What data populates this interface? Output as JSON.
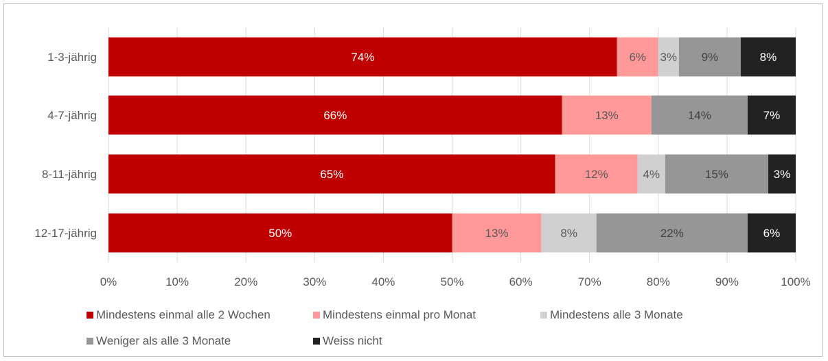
{
  "chart_data": {
    "type": "bar",
    "orientation": "horizontal",
    "stacked": true,
    "categories": [
      "1-3-jährig",
      "4-7-jährig",
      "8-11-jährig",
      "12-17-jährig"
    ],
    "series": [
      {
        "name": "Mindestens einmal alle 2 Wochen",
        "color": "#c00000",
        "label_color": "#ffffff",
        "values": [
          74,
          66,
          65,
          50
        ],
        "labels": [
          "74%",
          "66%",
          "65%",
          "50%"
        ]
      },
      {
        "name": "Mindestens einmal pro Monat",
        "color": "#ff9999",
        "label_color": "#595959",
        "values": [
          6,
          13,
          12,
          13
        ],
        "labels": [
          "6%",
          "13%",
          "12%",
          "13%"
        ]
      },
      {
        "name": "Mindestens alle 3 Monate",
        "color": "#d0d0d0",
        "label_color": "#595959",
        "values": [
          3,
          0,
          4,
          8
        ],
        "labels": [
          "3%",
          "",
          "4%",
          "8%"
        ]
      },
      {
        "name": "Weniger als alle 3 Monate",
        "color": "#969696",
        "label_color": "#404040",
        "values": [
          9,
          14,
          15,
          22
        ],
        "labels": [
          "9%",
          "14%",
          "15%",
          "22%"
        ]
      },
      {
        "name": "Weiss nicht",
        "color": "#222222",
        "label_color": "#ffffff",
        "values": [
          8,
          7,
          3,
          6
        ],
        "labels": [
          "8%",
          "7%",
          "3%",
          "6%"
        ]
      }
    ],
    "xlim": [
      0,
      100
    ],
    "xticks": [
      "0%",
      "10%",
      "20%",
      "30%",
      "40%",
      "50%",
      "60%",
      "70%",
      "80%",
      "90%",
      "100%"
    ],
    "grid": true,
    "legend_position": "bottom",
    "title": "",
    "xlabel": "",
    "ylabel": ""
  }
}
